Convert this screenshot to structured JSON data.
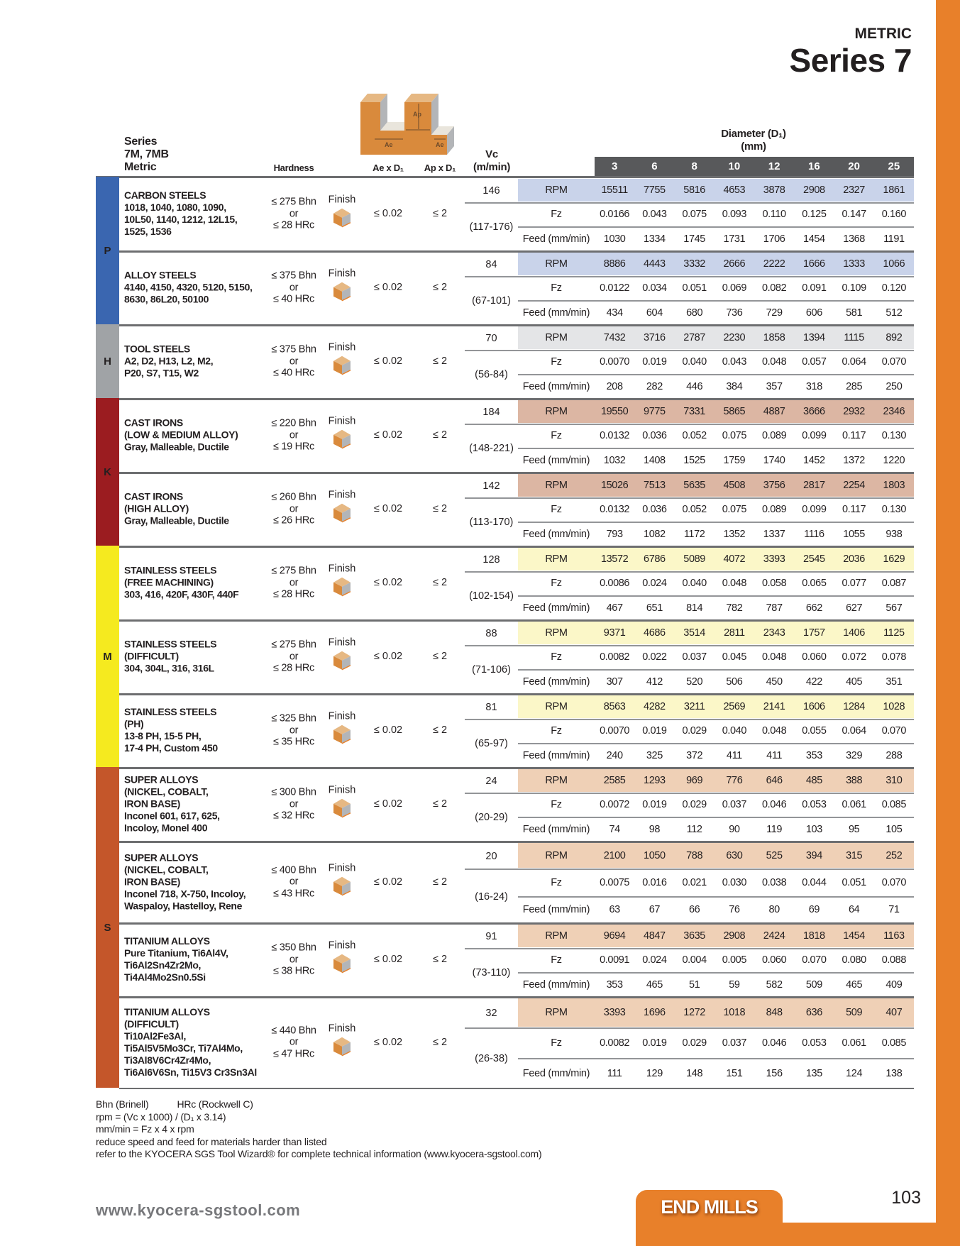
{
  "header": {
    "metric": "METRIC",
    "title": "Series 7"
  },
  "table_header": {
    "series_lines": [
      "Series",
      "7M, 7MB",
      "Metric"
    ],
    "hardness": "Hardness",
    "ae": "Ae x D₁",
    "ap": "Ap x D₁",
    "vc_lines": [
      "Vc",
      "(m/min)"
    ],
    "diameter_lines": [
      "Diameter (D₁)",
      "(mm)"
    ],
    "diameters": [
      "3",
      "6",
      "8",
      "10",
      "12",
      "16",
      "20",
      "25"
    ],
    "diagram_labels": {
      "ap": "Ap",
      "ae": "Ae"
    },
    "row_labels": {
      "rpm": "RPM",
      "fz": "Fz",
      "feed": "Feed (mm/min)"
    }
  },
  "categories": [
    {
      "letter": "P",
      "color": "#3a66b0",
      "shade": "#c9d3ea",
      "groups": [
        0,
        1
      ]
    },
    {
      "letter": "H",
      "color": "#a0a3a6",
      "shade": "#e4e5e7",
      "groups": [
        2
      ]
    },
    {
      "letter": "K",
      "color": "#9b1c20",
      "shade": "#dcb6a3",
      "groups": [
        3,
        4
      ]
    },
    {
      "letter": "M",
      "color": "#f5ea1f",
      "shade": "#fbf7c8",
      "groups": [
        5,
        6,
        7
      ]
    },
    {
      "letter": "S",
      "color": "#c4562a",
      "shade": "#efd0b6",
      "groups": [
        8,
        9,
        10,
        11
      ]
    }
  ],
  "groups": [
    {
      "lines": [
        "CARBON STEELS",
        "1018, 1040, 1080, 1090,",
        "10L50, 1140, 1212, 12L15,",
        "1525, 1536"
      ],
      "hardness": [
        "≤ 275 Bhn",
        "or",
        "≤ 28 HRc"
      ],
      "finish": "Finish",
      "ae": "≤ 0.02",
      "ap": "≤ 2",
      "vc": "146",
      "vc_range": "(117-176)",
      "rpm": [
        "15511",
        "7755",
        "5816",
        "4653",
        "3878",
        "2908",
        "2327",
        "1861"
      ],
      "fz": [
        "0.0166",
        "0.043",
        "0.075",
        "0.093",
        "0.110",
        "0.125",
        "0.147",
        "0.160"
      ],
      "feed": [
        "1030",
        "1334",
        "1745",
        "1731",
        "1706",
        "1454",
        "1368",
        "1191"
      ]
    },
    {
      "lines": [
        "ALLOY STEELS",
        "4140, 4150, 4320, 5120, 5150,",
        "8630, 86L20, 50100"
      ],
      "hardness": [
        "≤ 375 Bhn",
        "or",
        "≤ 40 HRc"
      ],
      "finish": "Finish",
      "ae": "≤ 0.02",
      "ap": "≤ 2",
      "vc": "84",
      "vc_range": "(67-101)",
      "rpm": [
        "8886",
        "4443",
        "3332",
        "2666",
        "2222",
        "1666",
        "1333",
        "1066"
      ],
      "fz": [
        "0.0122",
        "0.034",
        "0.051",
        "0.069",
        "0.082",
        "0.091",
        "0.109",
        "0.120"
      ],
      "feed": [
        "434",
        "604",
        "680",
        "736",
        "729",
        "606",
        "581",
        "512"
      ]
    },
    {
      "lines": [
        "TOOL STEELS",
        "A2, D2, H13, L2, M2,",
        "P20, S7, T15, W2"
      ],
      "hardness": [
        "≤ 375 Bhn",
        "or",
        "≤ 40 HRc"
      ],
      "finish": "Finish",
      "ae": "≤ 0.02",
      "ap": "≤ 2",
      "vc": "70",
      "vc_range": "(56-84)",
      "rpm": [
        "7432",
        "3716",
        "2787",
        "2230",
        "1858",
        "1394",
        "1115",
        "892"
      ],
      "fz": [
        "0.0070",
        "0.019",
        "0.040",
        "0.043",
        "0.048",
        "0.057",
        "0.064",
        "0.070"
      ],
      "feed": [
        "208",
        "282",
        "446",
        "384",
        "357",
        "318",
        "285",
        "250"
      ]
    },
    {
      "lines": [
        "CAST IRONS",
        "(LOW & MEDIUM ALLOY)",
        "Gray, Malleable, Ductile"
      ],
      "hardness": [
        "≤ 220 Bhn",
        "or",
        "≤ 19 HRc"
      ],
      "finish": "Finish",
      "ae": "≤ 0.02",
      "ap": "≤ 2",
      "vc": "184",
      "vc_range": "(148-221)",
      "rpm": [
        "19550",
        "9775",
        "7331",
        "5865",
        "4887",
        "3666",
        "2932",
        "2346"
      ],
      "fz": [
        "0.0132",
        "0.036",
        "0.052",
        "0.075",
        "0.089",
        "0.099",
        "0.117",
        "0.130"
      ],
      "feed": [
        "1032",
        "1408",
        "1525",
        "1759",
        "1740",
        "1452",
        "1372",
        "1220"
      ]
    },
    {
      "lines": [
        "CAST IRONS",
        "(HIGH ALLOY)",
        "Gray, Malleable, Ductile"
      ],
      "hardness": [
        "≤ 260 Bhn",
        "or",
        "≤ 26 HRc"
      ],
      "finish": "Finish",
      "ae": "≤ 0.02",
      "ap": "≤ 2",
      "vc": "142",
      "vc_range": "(113-170)",
      "rpm": [
        "15026",
        "7513",
        "5635",
        "4508",
        "3756",
        "2817",
        "2254",
        "1803"
      ],
      "fz": [
        "0.0132",
        "0.036",
        "0.052",
        "0.075",
        "0.089",
        "0.099",
        "0.117",
        "0.130"
      ],
      "feed": [
        "793",
        "1082",
        "1172",
        "1352",
        "1337",
        "1116",
        "1055",
        "938"
      ]
    },
    {
      "lines": [
        "STAINLESS STEELS",
        "(FREE MACHINING)",
        "303, 416, 420F, 430F, 440F"
      ],
      "hardness": [
        "≤ 275 Bhn",
        "or",
        "≤ 28 HRc"
      ],
      "finish": "Finish",
      "ae": "≤ 0.02",
      "ap": "≤ 2",
      "vc": "128",
      "vc_range": "(102-154)",
      "rpm": [
        "13572",
        "6786",
        "5089",
        "4072",
        "3393",
        "2545",
        "2036",
        "1629"
      ],
      "fz": [
        "0.0086",
        "0.024",
        "0.040",
        "0.048",
        "0.058",
        "0.065",
        "0.077",
        "0.087"
      ],
      "feed": [
        "467",
        "651",
        "814",
        "782",
        "787",
        "662",
        "627",
        "567"
      ]
    },
    {
      "lines": [
        "STAINLESS STEELS",
        "(DIFFICULT)",
        "304, 304L, 316, 316L"
      ],
      "hardness": [
        "≤ 275 Bhn",
        "or",
        "≤ 28 HRc"
      ],
      "finish": "Finish",
      "ae": "≤ 0.02",
      "ap": "≤ 2",
      "vc": "88",
      "vc_range": "(71-106)",
      "rpm": [
        "9371",
        "4686",
        "3514",
        "2811",
        "2343",
        "1757",
        "1406",
        "1125"
      ],
      "fz": [
        "0.0082",
        "0.022",
        "0.037",
        "0.045",
        "0.048",
        "0.060",
        "0.072",
        "0.078"
      ],
      "feed": [
        "307",
        "412",
        "520",
        "506",
        "450",
        "422",
        "405",
        "351"
      ]
    },
    {
      "lines": [
        "STAINLESS STEELS",
        "(PH)",
        "13-8 PH, 15-5 PH,",
        "17-4 PH, Custom 450"
      ],
      "hardness": [
        "≤ 325 Bhn",
        "or",
        "≤ 35 HRc"
      ],
      "finish": "Finish",
      "ae": "≤ 0.02",
      "ap": "≤ 2",
      "vc": "81",
      "vc_range": "(65-97)",
      "rpm": [
        "8563",
        "4282",
        "3211",
        "2569",
        "2141",
        "1606",
        "1284",
        "1028"
      ],
      "fz": [
        "0.0070",
        "0.019",
        "0.029",
        "0.040",
        "0.048",
        "0.055",
        "0.064",
        "0.070"
      ],
      "feed": [
        "240",
        "325",
        "372",
        "411",
        "411",
        "353",
        "329",
        "288"
      ]
    },
    {
      "lines": [
        "SUPER ALLOYS",
        "(NICKEL, COBALT,",
        "IRON BASE)",
        "Inconel 601, 617, 625,",
        "Incoloy, Monel 400"
      ],
      "hardness": [
        "≤ 300 Bhn",
        "or",
        "≤ 32 HRc"
      ],
      "finish": "Finish",
      "ae": "≤ 0.02",
      "ap": "≤ 2",
      "vc": "24",
      "vc_range": "(20-29)",
      "rpm": [
        "2585",
        "1293",
        "969",
        "776",
        "646",
        "485",
        "388",
        "310"
      ],
      "fz": [
        "0.0072",
        "0.019",
        "0.029",
        "0.037",
        "0.046",
        "0.053",
        "0.061",
        "0.085"
      ],
      "feed": [
        "74",
        "98",
        "112",
        "90",
        "119",
        "103",
        "95",
        "105"
      ]
    },
    {
      "lines": [
        "SUPER ALLOYS",
        "(NICKEL, COBALT,",
        "IRON BASE)",
        "Inconel 718, X-750, Incoloy,",
        "Waspaloy, Hastelloy, Rene"
      ],
      "hardness": [
        "≤ 400 Bhn",
        "or",
        "≤ 43 HRc"
      ],
      "finish": "Finish",
      "ae": "≤ 0.02",
      "ap": "≤ 2",
      "vc": "20",
      "vc_range": "(16-24)",
      "rpm": [
        "2100",
        "1050",
        "788",
        "630",
        "525",
        "394",
        "315",
        "252"
      ],
      "fz": [
        "0.0075",
        "0.016",
        "0.021",
        "0.030",
        "0.038",
        "0.044",
        "0.051",
        "0.070"
      ],
      "feed": [
        "63",
        "67",
        "66",
        "76",
        "80",
        "69",
        "64",
        "71"
      ]
    },
    {
      "lines": [
        "TITANIUM ALLOYS",
        "Pure Titanium, Ti6Al4V,",
        "Ti6Al2Sn4Zr2Mo,",
        "Ti4Al4Mo2Sn0.5Si"
      ],
      "hardness": [
        "≤ 350 Bhn",
        "or",
        "≤ 38 HRc"
      ],
      "finish": "Finish",
      "ae": "≤ 0.02",
      "ap": "≤ 2",
      "vc": "91",
      "vc_range": "(73-110)",
      "rpm": [
        "9694",
        "4847",
        "3635",
        "2908",
        "2424",
        "1818",
        "1454",
        "1163"
      ],
      "fz": [
        "0.0091",
        "0.024",
        "0.004",
        "0.005",
        "0.060",
        "0.070",
        "0.080",
        "0.088"
      ],
      "feed": [
        "353",
        "465",
        "51",
        "59",
        "582",
        "509",
        "465",
        "409"
      ]
    },
    {
      "lines": [
        "TITANIUM ALLOYS",
        "(DIFFICULT)",
        "Ti10Al2Fe3Al,",
        "Ti5Al5V5Mo3Cr, Ti7Al4Mo,",
        "Ti3Al8V6Cr4Zr4Mo,",
        "Ti6Al6V6Sn, Ti15V3 Cr3Sn3Al"
      ],
      "hardness": [
        "≤ 440 Bhn",
        "or",
        "≤ 47 HRc"
      ],
      "finish": "Finish",
      "ae": "≤ 0.02",
      "ap": "≤ 2",
      "vc": "32",
      "vc_range": "(26-38)",
      "rpm": [
        "3393",
        "1696",
        "1272",
        "1018",
        "848",
        "636",
        "509",
        "407"
      ],
      "fz": [
        "0.0082",
        "0.019",
        "0.029",
        "0.037",
        "0.046",
        "0.053",
        "0.061",
        "0.085"
      ],
      "feed": [
        "111",
        "129",
        "148",
        "151",
        "156",
        "135",
        "124",
        "138"
      ]
    }
  ],
  "notes": {
    "legend": [
      "Bhn (Brinell)",
      "HRc (Rockwell C)"
    ],
    "lines": [
      "rpm = (Vc x 1000) / (D₁ x 3.14)",
      "mm/min = Fz x 4 x rpm",
      "reduce speed and feed for materials harder than listed",
      "refer to the KYOCERA SGS Tool Wizard® for complete technical information (www.kyocera-sgstool.com)"
    ]
  },
  "footer": {
    "website": "www.kyocera-sgstool.com",
    "tab": "END MILLS",
    "page": "103"
  },
  "colors": {
    "brand_orange": "#e8802a",
    "header_band": "#58595b",
    "rule": "#6d6e70"
  }
}
